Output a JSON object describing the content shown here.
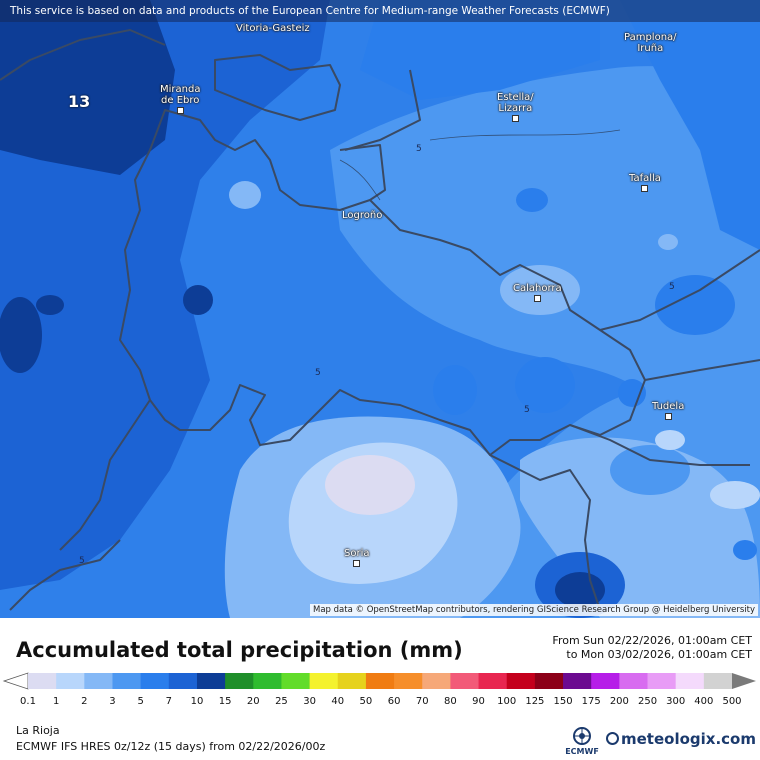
{
  "map": {
    "notice": "This service is based on data and products of the European Centre for Medium-range Weather Forecasts (ECMWF)",
    "attribution": "Map data © OpenStreetMap contributors, rendering GIScience Research Group @ Heidelberg University",
    "max_label": "13",
    "contour_label": "5",
    "cities": [
      {
        "name": "Vitoria-Gasteiz"
      },
      {
        "name": "Pamplona/\nIruña"
      },
      {
        "name": "Miranda\nde Ebro"
      },
      {
        "name": "Estella/\nLizarra"
      },
      {
        "name": "Tafalla"
      },
      {
        "name": "Logroño"
      },
      {
        "name": "Calahorra"
      },
      {
        "name": "Tudela"
      },
      {
        "name": "Soria"
      }
    ]
  },
  "legend": {
    "title": "Accumulated total precipitation (mm)",
    "from": "From Sun 02/22/2026, 01:00am CET",
    "to": "to Mon 03/02/2026, 01:00am CET",
    "ticks": [
      "0.1",
      "1",
      "2",
      "3",
      "5",
      "7",
      "10",
      "15",
      "20",
      "25",
      "30",
      "40",
      "50",
      "60",
      "70",
      "80",
      "90",
      "100",
      "125",
      "150",
      "175",
      "200",
      "250",
      "300",
      "400",
      "500"
    ],
    "colors": [
      "#dcdcf2",
      "#b8d6fb",
      "#84b8f6",
      "#4d98f1",
      "#2a7eec",
      "#1c63d4",
      "#0d3d96",
      "#1f8f2a",
      "#2fbc2f",
      "#62dc2a",
      "#f4f22e",
      "#e6d21c",
      "#f07c12",
      "#f68e2a",
      "#f6a878",
      "#f25a78",
      "#e82650",
      "#c4001c",
      "#8c0018",
      "#6c0a90",
      "#b61ee8",
      "#d86cf0",
      "#e89cf6",
      "#f4dafc",
      "#d2d2d2"
    ],
    "region": "La Rioja",
    "model": "ECMWF IFS HRES 0z/12z (15 days) from  02/22/2026/00z",
    "ecmwf_label": "ECMWF",
    "brand": "meteologix.com"
  }
}
